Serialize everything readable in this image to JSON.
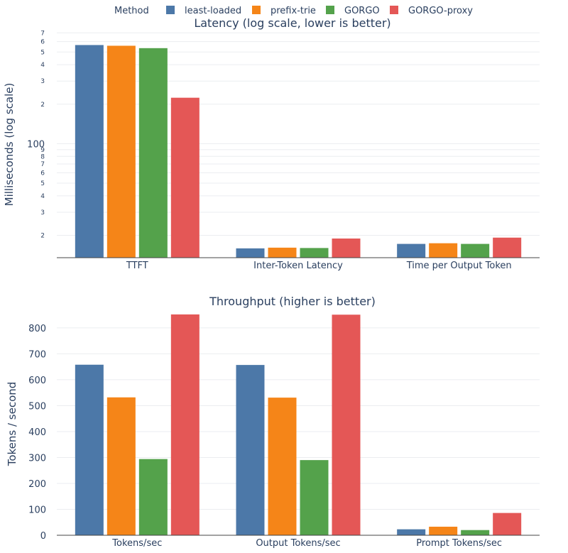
{
  "legend": {
    "title": "Method",
    "items": [
      {
        "name": "least-loaded",
        "color": "#4c78a8"
      },
      {
        "name": "prefix-trie",
        "color": "#f58518"
      },
      {
        "name": "GORGO",
        "color": "#54a24b"
      },
      {
        "name": "GORGO-proxy",
        "color": "#e45756"
      }
    ]
  },
  "chart_data": [
    {
      "type": "bar",
      "title": "Latency (log scale, lower is better)",
      "ylabel": "Milliseconds (log scale)",
      "log_y": true,
      "ylim": [
        13.5,
        720
      ],
      "major_ticks": [
        {
          "value": 100,
          "label": "100"
        }
      ],
      "minor_ticks": [
        {
          "value": 20,
          "label": "2"
        },
        {
          "value": 30,
          "label": "3"
        },
        {
          "value": 40,
          "label": "4"
        },
        {
          "value": 50,
          "label": "5"
        },
        {
          "value": 60,
          "label": "6"
        },
        {
          "value": 70,
          "label": "7"
        },
        {
          "value": 80,
          "label": "8"
        },
        {
          "value": 90,
          "label": "9"
        },
        {
          "value": 200,
          "label": "2"
        },
        {
          "value": 300,
          "label": "3"
        },
        {
          "value": 400,
          "label": "4"
        },
        {
          "value": 500,
          "label": "5"
        },
        {
          "value": 600,
          "label": "6"
        },
        {
          "value": 700,
          "label": "7"
        }
      ],
      "grid": true,
      "categories": [
        "TTFT",
        "Inter-Token Latency",
        "Time per Output Token"
      ],
      "series": [
        {
          "name": "least-loaded",
          "values": [
            565,
            15.9,
            17.2
          ]
        },
        {
          "name": "prefix-trie",
          "values": [
            558,
            16.1,
            17.4
          ]
        },
        {
          "name": "GORGO",
          "values": [
            535,
            16.0,
            17.2
          ]
        },
        {
          "name": "GORGO-proxy",
          "values": [
            224,
            18.9,
            19.2
          ]
        }
      ]
    },
    {
      "type": "bar",
      "title": "Throughput (higher is better)",
      "ylabel": "Tokens / second",
      "log_y": false,
      "ylim": [
        0,
        860
      ],
      "ticks": [
        0,
        100,
        200,
        300,
        400,
        500,
        600,
        700,
        800
      ],
      "grid": true,
      "categories": [
        "Tokens/sec",
        "Output Tokens/sec",
        "Prompt Tokens/sec"
      ],
      "series": [
        {
          "name": "least-loaded",
          "values": [
            658,
            657,
            23
          ]
        },
        {
          "name": "prefix-trie",
          "values": [
            532,
            531,
            33
          ]
        },
        {
          "name": "GORGO",
          "values": [
            294,
            290,
            20
          ]
        },
        {
          "name": "GORGO-proxy",
          "values": [
            852,
            851,
            86
          ]
        }
      ]
    }
  ]
}
